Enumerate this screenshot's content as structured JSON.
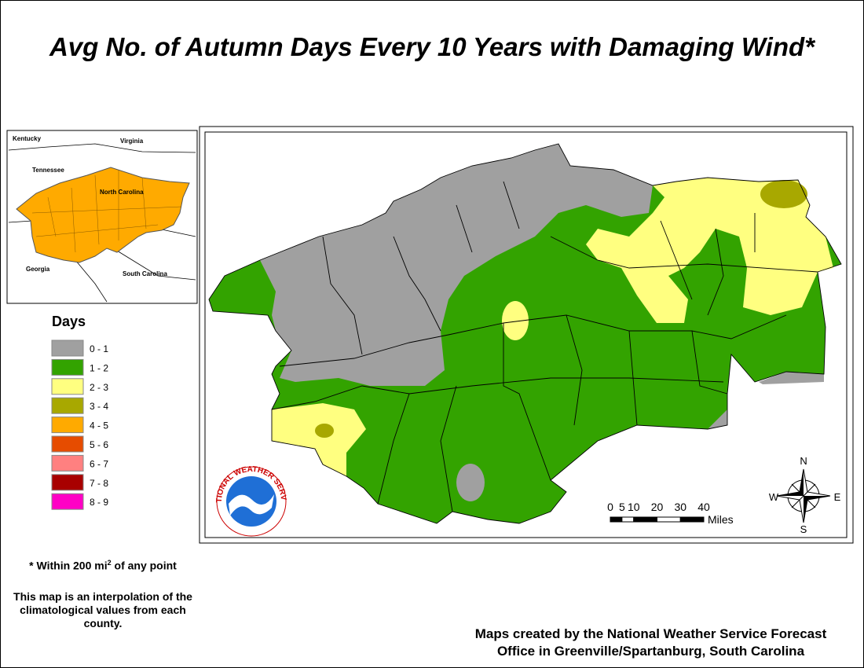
{
  "title": "Avg No. of Autumn Days Every 10 Years with Damaging Wind*",
  "inset": {
    "labels": [
      "Kentucky",
      "Virginia",
      "Tennessee",
      "North Carolina",
      "Georgia",
      "South Carolina"
    ]
  },
  "legend": {
    "title": "Days",
    "items": [
      {
        "label": "0 - 1",
        "color": "#a0a0a0"
      },
      {
        "label": "1 - 2",
        "color": "#33a300"
      },
      {
        "label": "2 - 3",
        "color": "#ffff80"
      },
      {
        "label": "3 - 4",
        "color": "#a8a800"
      },
      {
        "label": "4 - 5",
        "color": "#ffaa00"
      },
      {
        "label": "5 - 6",
        "color": "#e64c00"
      },
      {
        "label": "6 - 7",
        "color": "#ff8080"
      },
      {
        "label": "7 - 8",
        "color": "#a80000"
      },
      {
        "label": "8 - 9",
        "color": "#ff00c5"
      }
    ]
  },
  "scale": {
    "ticks": [
      0,
      5,
      10,
      20,
      30,
      40
    ],
    "unit": "Miles"
  },
  "compass": {
    "n": "N",
    "s": "S",
    "e": "E",
    "w": "W"
  },
  "logo": "NATIONAL WEATHER SERVICE",
  "footnote": {
    "start": "* Within 200 mi",
    "superscript": "2",
    "end": " of any point"
  },
  "note": "This map is an interpolation of the climatological values from each county.",
  "credit": [
    "Maps created by the National Weather Service Forecast",
    "Office in Greenville/Spartanburg, South Carolina"
  ]
}
